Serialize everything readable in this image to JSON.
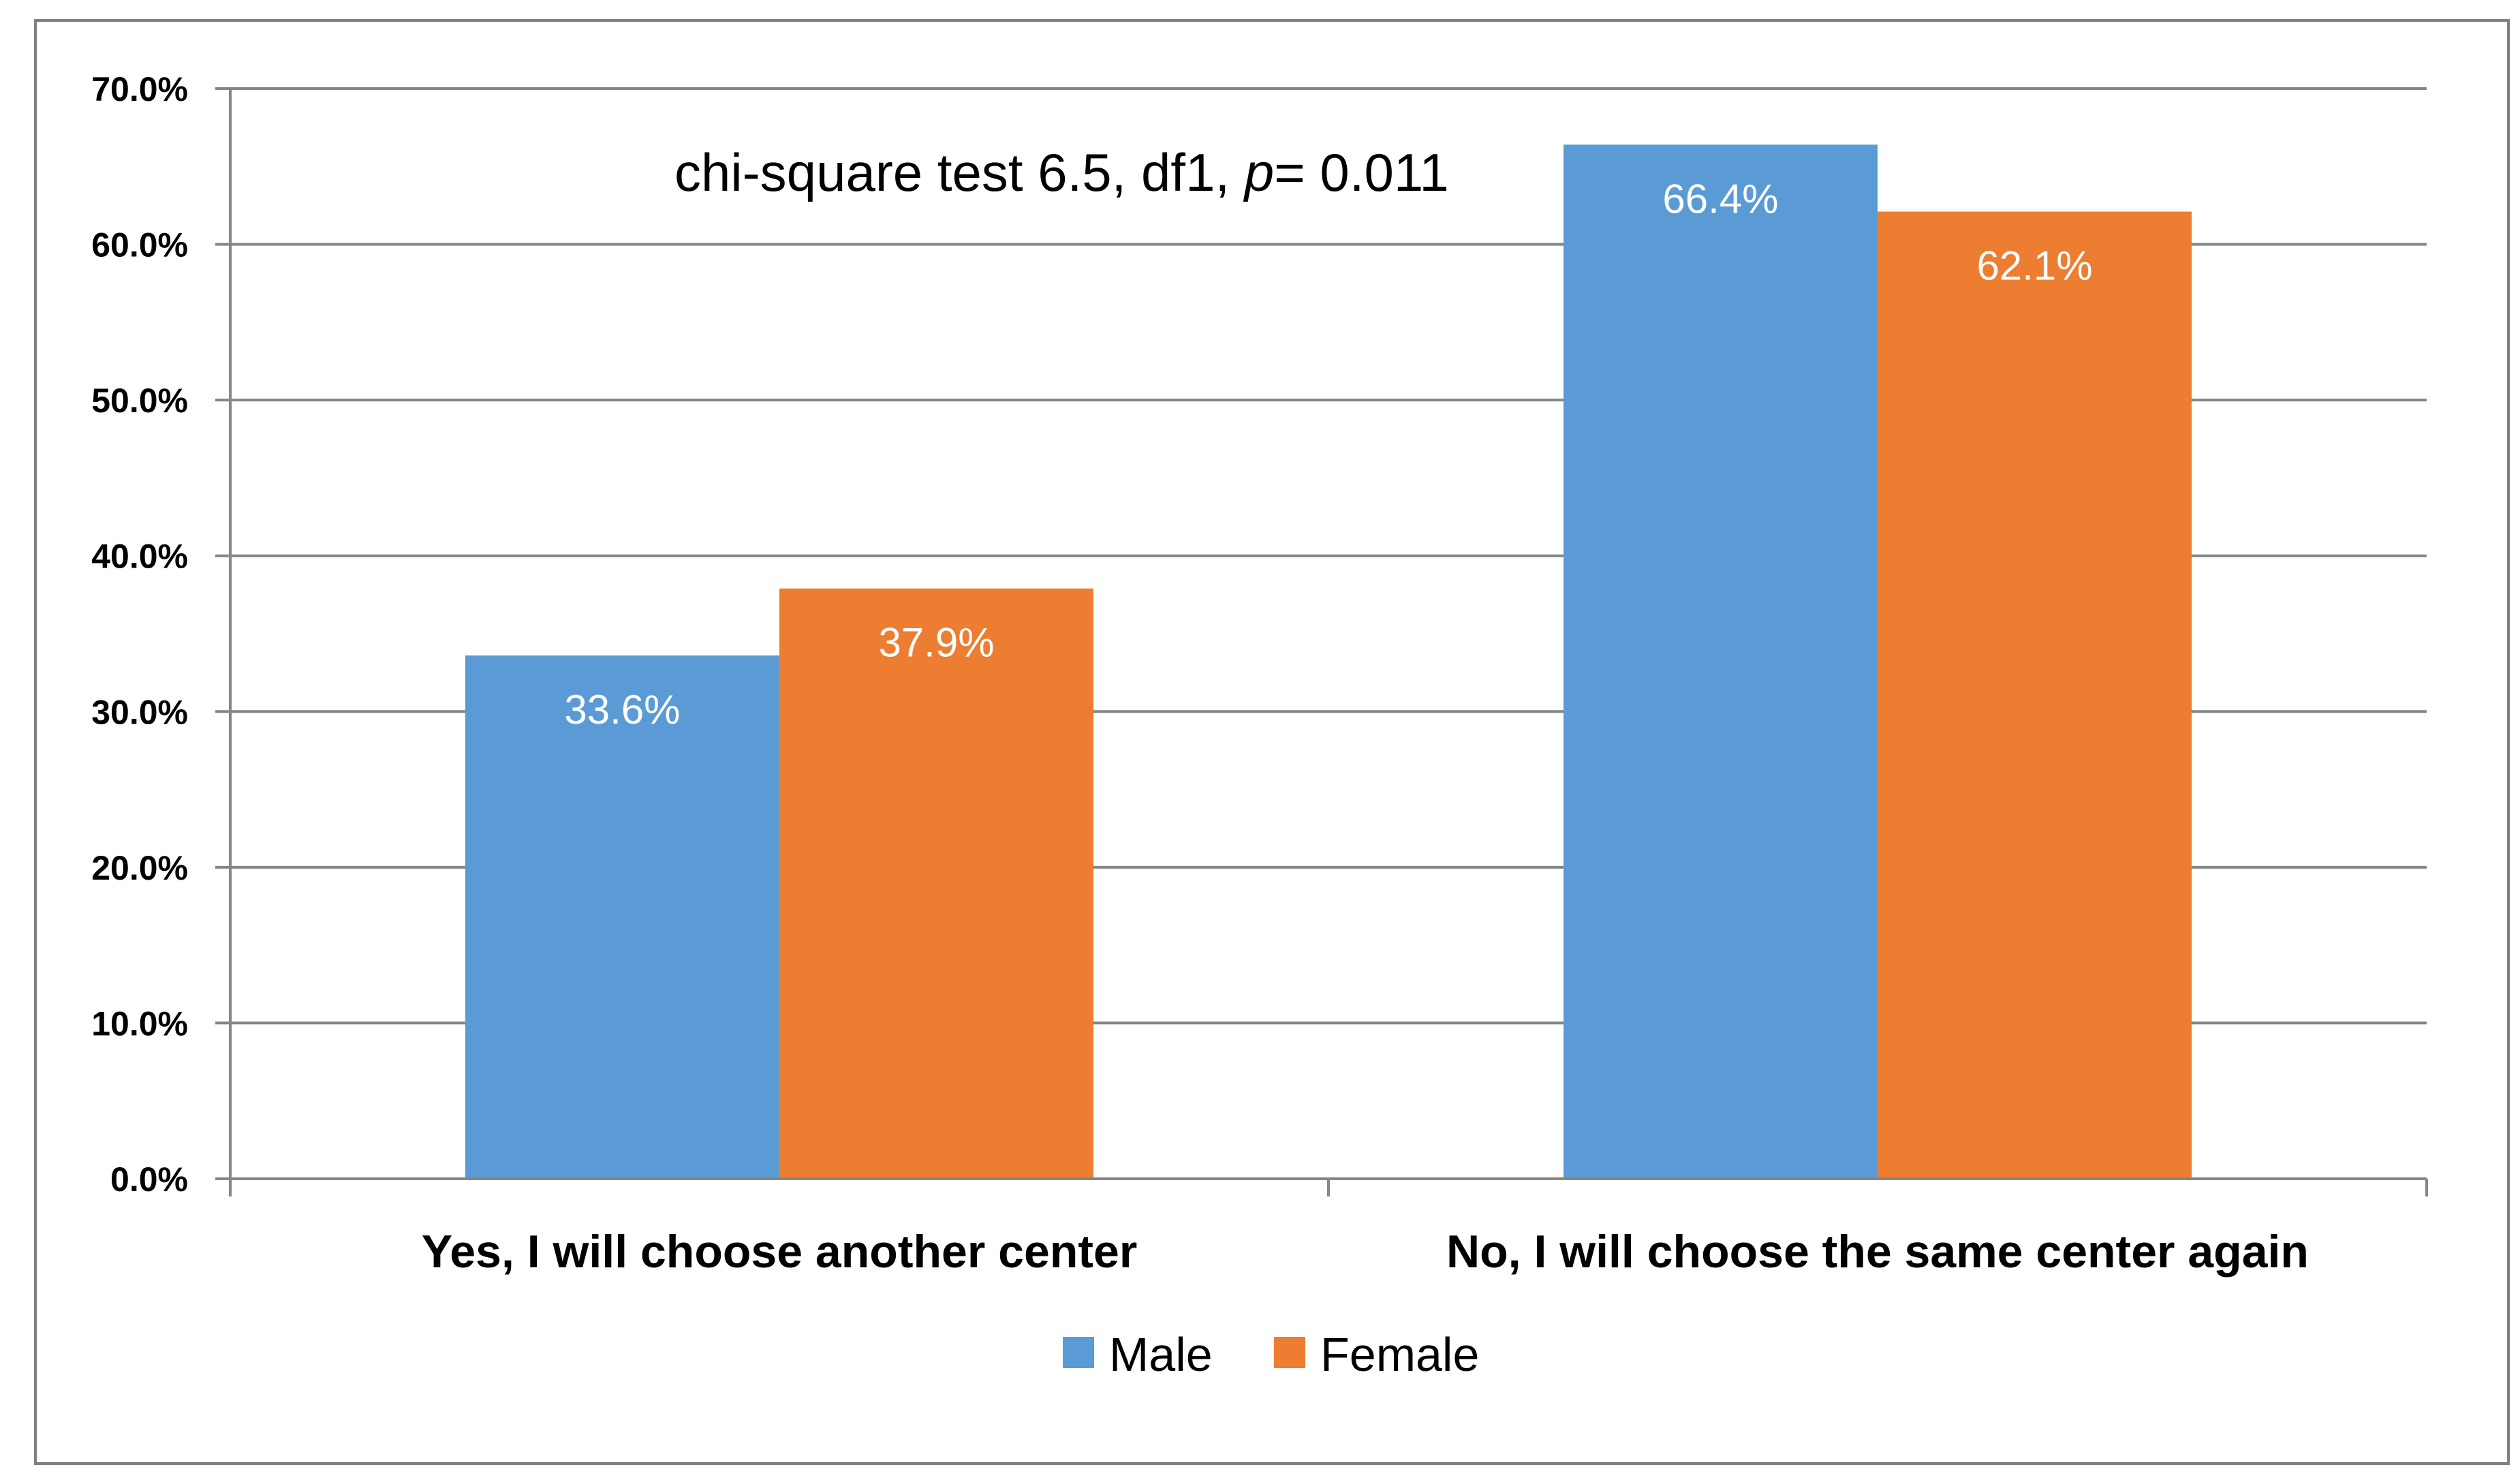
{
  "chart_data": {
    "type": "bar",
    "categories": [
      "Yes, I will choose another center",
      "No, I will choose the same center again"
    ],
    "series": [
      {
        "name": "Male",
        "values": [
          33.6,
          66.4
        ],
        "labels": [
          "33.6%",
          "66.4%"
        ],
        "color": "#5B9BD5"
      },
      {
        "name": "Female",
        "values": [
          37.9,
          62.1
        ],
        "labels": [
          "37.9%",
          "62.1%"
        ],
        "color": "#ED7D31"
      }
    ],
    "yticks": [
      "0.0%",
      "10.0%",
      "20.0%",
      "30.0%",
      "40.0%",
      "50.0%",
      "60.0%",
      "70.0%"
    ],
    "ylim": [
      0,
      70
    ],
    "grid": true,
    "legend_position": "bottom",
    "annotation": {
      "prefix": "chi-square test 6.5, df1, ",
      "italic": "p",
      "suffix": "= 0.011"
    },
    "title": "",
    "xlabel": "",
    "ylabel": ""
  }
}
